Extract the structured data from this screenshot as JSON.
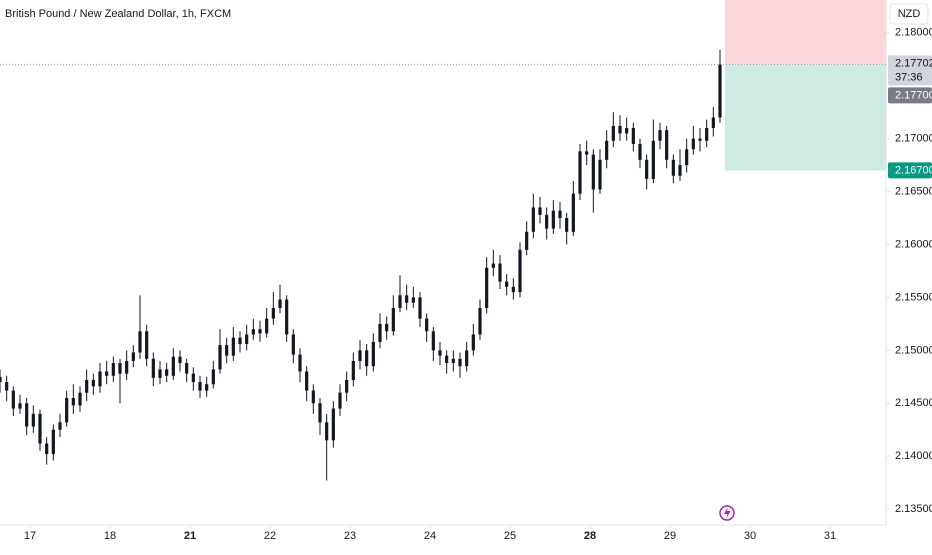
{
  "chart_data": {
    "type": "candlestick",
    "title": "British Pound / New Zealand Dollar, 1h, FXCM",
    "currency_button": "NZD",
    "color": "#131722",
    "grid": false,
    "x": [
      0,
      2,
      4,
      6,
      8,
      10,
      12,
      14,
      16,
      18,
      20,
      22,
      24,
      26,
      28,
      30,
      32,
      34,
      36,
      38,
      40,
      42,
      44,
      46,
      48,
      50,
      52,
      54,
      56,
      58,
      60,
      62,
      64,
      66,
      68,
      70,
      72,
      74,
      76,
      78,
      80,
      82,
      84,
      86,
      88,
      90,
      92,
      94,
      96,
      98,
      100,
      102,
      104,
      106,
      108,
      110,
      112,
      114,
      116,
      118,
      120,
      122,
      124,
      126,
      128,
      130,
      132,
      134,
      136,
      138,
      140,
      142,
      144,
      146,
      148,
      150,
      152,
      154,
      156,
      158,
      160,
      162,
      164,
      166,
      168,
      170,
      172,
      174,
      176,
      178,
      180,
      182,
      184,
      186,
      188,
      190,
      192,
      194,
      196,
      198,
      200,
      202,
      204,
      206,
      208,
      210,
      212,
      214,
      216
    ],
    "open": [
      2.1475,
      2.147,
      2.1462,
      2.1445,
      2.145,
      2.1428,
      2.144,
      2.1412,
      2.1402,
      2.1425,
      2.1432,
      2.1455,
      2.1448,
      2.146,
      2.1472,
      2.1466,
      2.148,
      2.1476,
      2.1488,
      2.1478,
      2.149,
      2.1498,
      2.1518,
      2.1492,
      2.1474,
      2.1482,
      2.1476,
      2.1494,
      2.1488,
      2.1478,
      2.147,
      2.1462,
      2.1468,
      2.1482,
      2.1505,
      2.1495,
      2.1512,
      2.1506,
      2.1515,
      2.152,
      2.1516,
      2.153,
      2.154,
      2.1548,
      2.1515,
      2.1496,
      2.148,
      2.1462,
      2.145,
      2.1432,
      2.1415,
      2.1445,
      2.146,
      2.1472,
      2.149,
      2.15,
      2.1485,
      2.1508,
      2.1525,
      2.1518,
      2.154,
      2.1552,
      2.1545,
      2.155,
      2.153,
      2.1518,
      2.15,
      2.1495,
      2.1488,
      2.1492,
      2.1485,
      2.15,
      2.1515,
      2.154,
      2.1578,
      2.1582,
      2.1565,
      2.156,
      2.1555,
      2.1595,
      2.1612,
      2.1635,
      2.1628,
      2.1615,
      2.1632,
      2.1625,
      2.1612,
      2.1648,
      2.1688,
      2.1685,
      2.1652,
      2.168,
      2.1698,
      2.1712,
      2.1705,
      2.171,
      2.1695,
      2.168,
      2.1662,
      2.1698,
      2.1708,
      2.168,
      2.1665,
      2.1675,
      2.169,
      2.17,
      2.1698,
      2.171,
      2.172
    ],
    "high": [
      2.1482,
      2.1476,
      2.1466,
      2.1458,
      2.1455,
      2.1448,
      2.1444,
      2.1418,
      2.143,
      2.144,
      2.1462,
      2.1468,
      2.1466,
      2.1482,
      2.1478,
      2.1488,
      2.149,
      2.1494,
      2.1492,
      2.15,
      2.1505,
      2.1552,
      2.1524,
      2.1498,
      2.149,
      2.1488,
      2.1502,
      2.15,
      2.1492,
      2.1484,
      2.1476,
      2.1475,
      2.149,
      2.152,
      2.1512,
      2.1522,
      2.1518,
      2.1524,
      2.153,
      2.1528,
      2.154,
      2.1555,
      2.1562,
      2.1552,
      2.152,
      2.1502,
      2.1485,
      2.1468,
      2.1455,
      2.144,
      2.1452,
      2.1468,
      2.148,
      2.1498,
      2.151,
      2.1506,
      2.1516,
      2.1535,
      2.1532,
      2.1552,
      2.1571,
      2.1562,
      2.156,
      2.1555,
      2.1535,
      2.1522,
      2.1508,
      2.15,
      2.15,
      2.1498,
      2.1508,
      2.1525,
      2.1548,
      2.1588,
      2.1595,
      2.159,
      2.1572,
      2.1568,
      2.1602,
      2.1622,
      2.1648,
      2.1645,
      2.1635,
      2.1642,
      2.164,
      2.163,
      2.166,
      2.1695,
      2.1698,
      2.169,
      2.169,
      2.1708,
      2.1725,
      2.1722,
      2.172,
      2.1715,
      2.17,
      2.1685,
      2.1718,
      2.1715,
      2.1712,
      2.1685,
      2.169,
      2.17,
      2.1712,
      2.171,
      2.1718,
      2.173,
      2.1784
    ],
    "low": [
      2.146,
      2.1452,
      2.1438,
      2.144,
      2.142,
      2.1422,
      2.1405,
      2.1392,
      2.1396,
      2.1418,
      2.1428,
      2.144,
      2.1442,
      2.1452,
      2.1458,
      2.146,
      2.1468,
      2.147,
      2.145,
      2.1472,
      2.1484,
      2.1492,
      2.1485,
      2.1466,
      2.1468,
      2.147,
      2.1472,
      2.148,
      2.147,
      2.1462,
      2.1455,
      2.1456,
      2.1464,
      2.1478,
      2.1488,
      2.149,
      2.1498,
      2.15,
      2.151,
      2.1508,
      2.1512,
      2.1524,
      2.1535,
      2.1508,
      2.1488,
      2.147,
      2.1452,
      2.144,
      2.142,
      2.1377,
      2.1408,
      2.1438,
      2.1452,
      2.1466,
      2.1482,
      2.1476,
      2.148,
      2.1502,
      2.151,
      2.1514,
      2.1536,
      2.1538,
      2.154,
      2.1522,
      2.1508,
      2.149,
      2.1486,
      2.1478,
      2.148,
      2.1474,
      2.148,
      2.1495,
      2.151,
      2.1535,
      2.157,
      2.1558,
      2.1552,
      2.1548,
      2.155,
      2.159,
      2.1606,
      2.162,
      2.1605,
      2.161,
      2.1615,
      2.16,
      2.1608,
      2.1642,
      2.1675,
      2.163,
      2.1648,
      2.1672,
      2.1692,
      2.1698,
      2.1698,
      2.1688,
      2.1672,
      2.1652,
      2.1658,
      2.169,
      2.1672,
      2.1658,
      2.166,
      2.1668,
      2.1685,
      2.1688,
      2.1692,
      2.1702,
      2.1715
    ],
    "close": [
      2.147,
      2.1462,
      2.1445,
      2.145,
      2.1428,
      2.144,
      2.1412,
      2.1402,
      2.1425,
      2.1432,
      2.1455,
      2.1448,
      2.146,
      2.1472,
      2.1466,
      2.148,
      2.1476,
      2.1488,
      2.1478,
      2.149,
      2.1498,
      2.1518,
      2.1492,
      2.1474,
      2.1482,
      2.1476,
      2.1494,
      2.1488,
      2.1478,
      2.147,
      2.1462,
      2.1468,
      2.1482,
      2.1505,
      2.1495,
      2.1512,
      2.1506,
      2.1515,
      2.152,
      2.1516,
      2.153,
      2.154,
      2.1548,
      2.1515,
      2.1496,
      2.148,
      2.1462,
      2.145,
      2.1432,
      2.1415,
      2.1445,
      2.146,
      2.1472,
      2.149,
      2.15,
      2.1485,
      2.1508,
      2.1525,
      2.1518,
      2.154,
      2.1552,
      2.1545,
      2.155,
      2.153,
      2.1518,
      2.15,
      2.1495,
      2.1488,
      2.1492,
      2.1485,
      2.15,
      2.1515,
      2.154,
      2.1578,
      2.1582,
      2.1565,
      2.156,
      2.1555,
      2.1595,
      2.1612,
      2.1635,
      2.1628,
      2.1615,
      2.1632,
      2.1625,
      2.1612,
      2.1648,
      2.1688,
      2.1685,
      2.1652,
      2.168,
      2.1698,
      2.1712,
      2.1705,
      2.171,
      2.1695,
      2.168,
      2.1662,
      2.1698,
      2.1708,
      2.168,
      2.1665,
      2.1675,
      2.169,
      2.17,
      2.1698,
      2.171,
      2.172,
      2.177
    ],
    "xlim": [
      0,
      265.8
    ],
    "xticks": [
      {
        "value": 9,
        "label": "17"
      },
      {
        "value": 33,
        "label": "18"
      },
      {
        "value": 57,
        "label": "21"
      },
      {
        "value": 81,
        "label": "22"
      },
      {
        "value": 105,
        "label": "23"
      },
      {
        "value": 129,
        "label": "24"
      },
      {
        "value": 153,
        "label": "25"
      },
      {
        "value": 177,
        "label": "28"
      },
      {
        "value": 201,
        "label": "29"
      },
      {
        "value": 225,
        "label": "30"
      },
      {
        "value": 249,
        "label": "31"
      }
    ],
    "xticks_bold": [
      false,
      false,
      true,
      false,
      false,
      false,
      false,
      true,
      false,
      false,
      false
    ],
    "ylim": [
      2.1335,
      2.1831
    ],
    "yticks": [
      {
        "value": 2.18,
        "label": "2.18000"
      },
      {
        "value": 2.17,
        "label": "2.17000"
      },
      {
        "value": 2.165,
        "label": "2.16500"
      },
      {
        "value": 2.16,
        "label": "2.16000"
      },
      {
        "value": 2.155,
        "label": "2.15500"
      },
      {
        "value": 2.15,
        "label": "2.15000"
      },
      {
        "value": 2.145,
        "label": "2.14500"
      },
      {
        "value": 2.14,
        "label": "2.14000"
      },
      {
        "value": 2.135,
        "label": "2.13500"
      }
    ],
    "last_price": {
      "value": 2.17702,
      "label": "2.17702"
    },
    "countdown": "37:36",
    "position": {
      "x_range": [
        217.5,
        265.8
      ],
      "entry": {
        "value": 2.177,
        "label": "2.17700"
      },
      "target": {
        "value": 2.167,
        "label": "2.16700"
      },
      "stop": 2.1831,
      "stop_color": "#fcd6d9",
      "target_color": "#cdebe2",
      "target_label_color": "#089981"
    }
  }
}
